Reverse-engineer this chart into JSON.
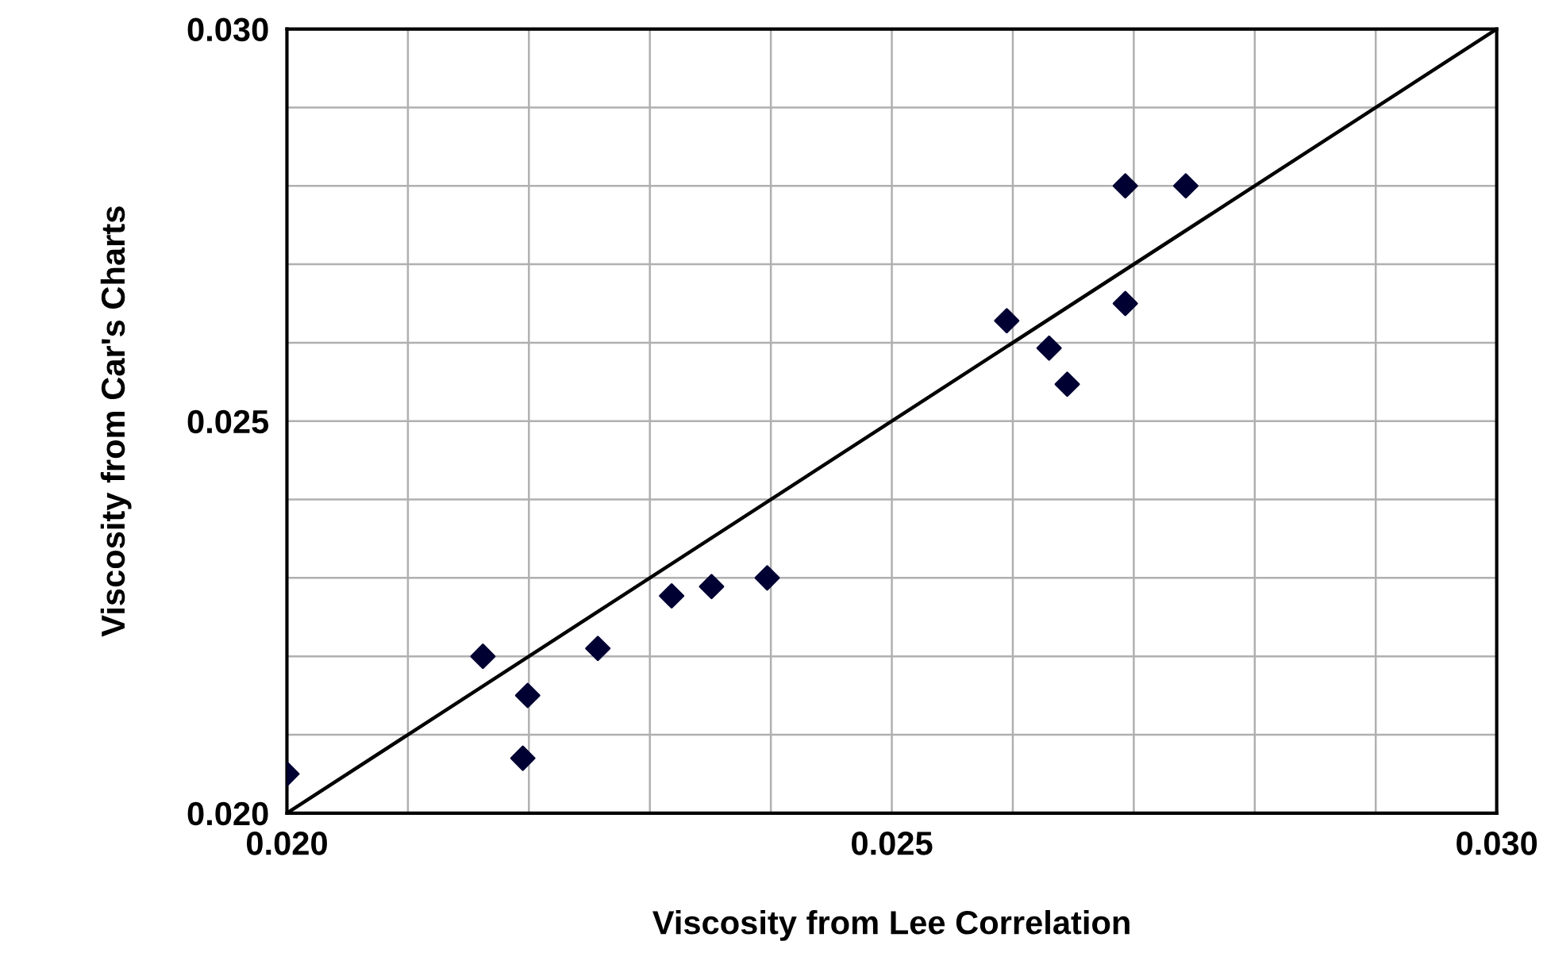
{
  "chart_data": {
    "type": "scatter",
    "xlabel": "Viscosity from Lee Correlation",
    "ylabel": "Viscosity from Car's Charts",
    "xlim": [
      0.02,
      0.03
    ],
    "ylim": [
      0.02,
      0.03
    ],
    "xticks": [
      {
        "value": 0.02,
        "label": "0.020"
      },
      {
        "value": 0.021,
        "label": null
      },
      {
        "value": 0.022,
        "label": null
      },
      {
        "value": 0.023,
        "label": null
      },
      {
        "value": 0.024,
        "label": null
      },
      {
        "value": 0.025,
        "label": "0.025"
      },
      {
        "value": 0.026,
        "label": null
      },
      {
        "value": 0.027,
        "label": null
      },
      {
        "value": 0.028,
        "label": null
      },
      {
        "value": 0.029,
        "label": null
      },
      {
        "value": 0.03,
        "label": "0.030"
      }
    ],
    "yticks": [
      {
        "value": 0.02,
        "label": "0.020"
      },
      {
        "value": 0.021,
        "label": null
      },
      {
        "value": 0.022,
        "label": null
      },
      {
        "value": 0.023,
        "label": null
      },
      {
        "value": 0.024,
        "label": null
      },
      {
        "value": 0.025,
        "label": "0.025"
      },
      {
        "value": 0.026,
        "label": null
      },
      {
        "value": 0.027,
        "label": null
      },
      {
        "value": 0.028,
        "label": null
      },
      {
        "value": 0.029,
        "label": null
      },
      {
        "value": 0.03,
        "label": "0.030"
      }
    ],
    "grid": true,
    "legend": false,
    "series": [
      {
        "color": "#000033",
        "marker": "diamond",
        "x": [
          0.02,
          0.02162,
          0.02199,
          0.02195,
          0.02257,
          0.02318,
          0.02351,
          0.02397,
          0.02595,
          0.0263,
          0.02645,
          0.02693,
          0.02693,
          0.02743
        ],
        "values": [
          0.0205,
          0.022,
          0.0215,
          0.0207,
          0.0221,
          0.02277,
          0.02289,
          0.023,
          0.02628,
          0.02593,
          0.02547,
          0.028,
          0.0265,
          0.028
        ]
      },
      {
        "type": "line",
        "color": "#000000",
        "marker": "none",
        "line_style": "solid",
        "x": [
          0.02,
          0.03
        ],
        "values": [
          0.02,
          0.03
        ]
      }
    ]
  }
}
